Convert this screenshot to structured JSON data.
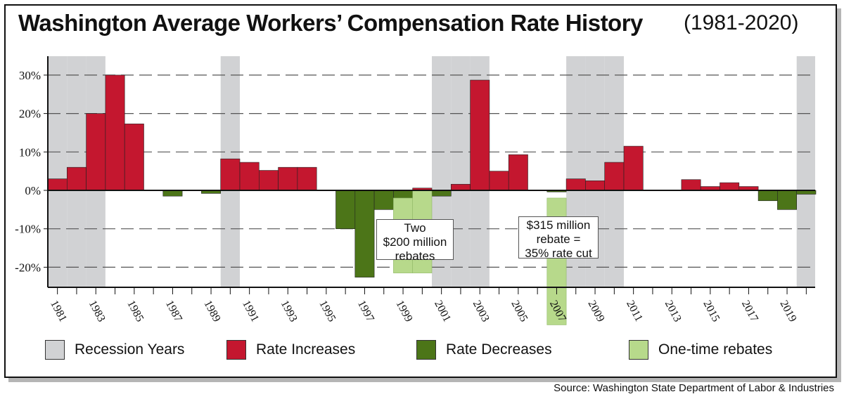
{
  "title": "Washington Average Workers’ Compensation Rate History",
  "subtitle": "(1981-2020)",
  "source": "Source: Washington State Department of Labor & Industries",
  "colors": {
    "recession": "#d1d2d4",
    "increase": "#c4172f",
    "decrease": "#4c7518",
    "rebate": "#b7d98b",
    "gridline": "#555555"
  },
  "legend": [
    {
      "label": "Recession Years",
      "color_key": "recession"
    },
    {
      "label": "Rate Increases",
      "color_key": "increase"
    },
    {
      "label": "Rate Decreases",
      "color_key": "decrease"
    },
    {
      "label": "One-time rebates",
      "color_key": "rebate"
    }
  ],
  "annotations": {
    "two_rebates": [
      "Two",
      "$200 million",
      "rebates"
    ],
    "rebate_2007": [
      "$315 million",
      "rebate =",
      "35% rate cut"
    ]
  },
  "chart_data": {
    "type": "bar",
    "title": "Washington Average Workers’ Compensation Rate History",
    "subtitle": "(1981-2020)",
    "xlabel": "",
    "ylabel": "",
    "ylim": [
      -25,
      35
    ],
    "y_ticks": [
      30,
      20,
      10,
      0,
      -10,
      -20
    ],
    "y_tick_labels": [
      "30%",
      "20%",
      "10%",
      "0%",
      "-10%",
      "-20%"
    ],
    "x_tick_labels": [
      "1981",
      "1983",
      "1985",
      "1987",
      "1989",
      "1991",
      "1993",
      "1995",
      "1997",
      "1999",
      "2001",
      "2003",
      "2005",
      "2007",
      "2009",
      "2011",
      "2013",
      "2015",
      "2017",
      "2019"
    ],
    "grid": true,
    "legend_position": "bottom",
    "recession_years": [
      1981,
      1982,
      1983,
      1990,
      2001,
      2002,
      2003,
      2008,
      2009,
      2010,
      2020
    ],
    "series": [
      {
        "name": "Rate Increases / Rate Decreases",
        "x": [
          1981,
          1982,
          1983,
          1984,
          1985,
          1986,
          1987,
          1988,
          1989,
          1990,
          1991,
          1992,
          1993,
          1994,
          1995,
          1996,
          1997,
          1998,
          1999,
          2000,
          2001,
          2002,
          2003,
          2004,
          2005,
          2006,
          2007,
          2008,
          2009,
          2010,
          2011,
          2012,
          2013,
          2014,
          2015,
          2016,
          2017,
          2018,
          2019,
          2020
        ],
        "values": [
          3.0,
          6.0,
          20.0,
          30.0,
          17.3,
          0,
          -1.5,
          0,
          -0.8,
          8.2,
          7.3,
          5.2,
          6.0,
          6.0,
          0,
          -10.0,
          -22.6,
          -5.0,
          -2.0,
          0.6,
          -1.5,
          1.6,
          28.7,
          5.0,
          9.3,
          0,
          -0.4,
          3.0,
          2.5,
          7.3,
          11.5,
          0,
          0,
          2.8,
          1.0,
          2.0,
          1.0,
          -2.7,
          -5.0,
          -1.0
        ]
      },
      {
        "name": "One-time rebates",
        "x": [
          1999,
          2000,
          2007
        ],
        "from": [
          -2,
          0,
          -2
        ],
        "to": [
          -21.5,
          -21.5,
          -35
        ]
      }
    ]
  }
}
